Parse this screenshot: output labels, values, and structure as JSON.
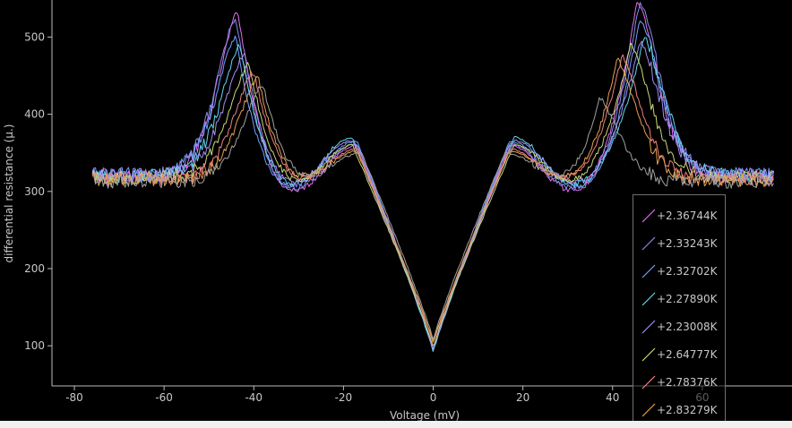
{
  "chart_data": {
    "type": "line",
    "xlabel": "Voltage (mV)",
    "ylabel": "differential resistance (µ.)",
    "xlim": [
      -85,
      80
    ],
    "ylim": [
      48,
      548
    ],
    "xticks": [
      -80,
      -60,
      -40,
      -20,
      0,
      20,
      40,
      60
    ],
    "yticks": [
      100,
      200,
      300,
      400,
      500
    ],
    "x_tick_labels": [
      "-80",
      "-60",
      "-40",
      "-20",
      "0",
      "20",
      "40",
      "60"
    ],
    "y_tick_labels": [
      "100",
      "200",
      "300",
      "400",
      "500"
    ],
    "legend_position": "bottom-right",
    "series": [
      {
        "name": "+2.36744K",
        "color": "#e070f0",
        "peak_left": [
          -43.5,
          533
        ],
        "peak_right": [
          45.5,
          548
        ],
        "dip": [
          -31,
          302
        ],
        "shoulder": [
          -17,
          360
        ],
        "center_min": 92,
        "plateau": 318
      },
      {
        "name": "+2.33243K",
        "color": "#8a8ae8",
        "peak_left": [
          -44,
          525
        ],
        "peak_right": [
          46,
          545
        ],
        "dip": [
          -31,
          305
        ],
        "shoulder": [
          -17,
          362
        ],
        "center_min": 93,
        "plateau": 320
      },
      {
        "name": "+2.32702K",
        "color": "#6fa0ff",
        "peak_left": [
          -44,
          500
        ],
        "peak_right": [
          46,
          525
        ],
        "dip": [
          -32,
          308
        ],
        "shoulder": [
          -17,
          365
        ],
        "center_min": 94,
        "plateau": 322
      },
      {
        "name": "+2.27890K",
        "color": "#60d8f0",
        "peak_left": [
          -43,
          490
        ],
        "peak_right": [
          47,
          500
        ],
        "dip": [
          -31,
          310
        ],
        "shoulder": [
          -18,
          370
        ],
        "center_min": 92,
        "plateau": 320
      },
      {
        "name": "+2.23008K",
        "color": "#a58cf0",
        "peak_left": [
          -42,
          480
        ],
        "peak_right": [
          46,
          495
        ],
        "dip": [
          -31,
          312
        ],
        "shoulder": [
          -18,
          366
        ],
        "center_min": 95,
        "plateau": 322
      },
      {
        "name": "+2.64777K",
        "color": "#c8d878",
        "peak_left": [
          -41,
          465
        ],
        "peak_right": [
          44,
          490
        ],
        "dip": [
          -30,
          315
        ],
        "shoulder": [
          -18,
          360
        ],
        "center_min": 98,
        "plateau": 318
      },
      {
        "name": "+2.78376K",
        "color": "#f08080",
        "peak_left": [
          -40,
          455
        ],
        "peak_right": [
          42,
          475
        ],
        "dip": [
          -29,
          318
        ],
        "shoulder": [
          -17,
          355
        ],
        "center_min": 102,
        "plateau": 316
      },
      {
        "name": "+2.83279K",
        "color": "#e8a050",
        "peak_left": [
          -39,
          448
        ],
        "peak_right": [
          41,
          470
        ],
        "dip": [
          -29,
          320
        ],
        "shoulder": [
          -17,
          352
        ],
        "center_min": 105,
        "plateau": 315
      },
      {
        "name": "",
        "color": "#a0a0a0",
        "peak_left": [
          -38,
          440
        ],
        "peak_right": [
          37,
          420
        ],
        "dip": [
          -28,
          322
        ],
        "shoulder": [
          -16,
          350
        ],
        "center_min": 108,
        "plateau": 313
      }
    ]
  }
}
